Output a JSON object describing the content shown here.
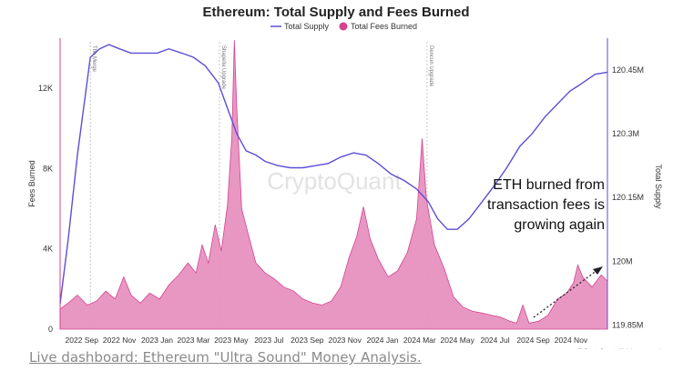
{
  "caption": "Live dashboard: Ethereum \"Ultra Sound\" Money Analysis.",
  "chart_data": {
    "type": "area",
    "title": "Ethereum: Total Supply and Fees Burned",
    "watermark": "CryptoQuant",
    "credit": "© CryptoQuant. All rights reserved",
    "legend": {
      "placement": "top-center",
      "items": [
        {
          "label": "Total Supply",
          "marker": "line"
        },
        {
          "label": "Total Fees Burned",
          "marker": "dot"
        }
      ]
    },
    "ylabel_left": "Fees Burned",
    "ylabel_right": "Total Supply",
    "ylim_left": [
      0,
      14500
    ],
    "ylim_right": [
      119.84,
      120.525
    ],
    "xlim": [
      "2022-07-28",
      "2024-12-30"
    ],
    "y_ticks_left": [
      {
        "value": 0,
        "label": "0"
      },
      {
        "value": 4000,
        "label": "4K"
      },
      {
        "value": 8000,
        "label": "8K"
      },
      {
        "value": 12000,
        "label": "12K"
      }
    ],
    "y_ticks_right": [
      {
        "value": 119.85,
        "label": "119.85M"
      },
      {
        "value": 120.0,
        "label": "120M"
      },
      {
        "value": 120.15,
        "label": "120.15M"
      },
      {
        "value": 120.3,
        "label": "120.3M"
      },
      {
        "value": 120.45,
        "label": "120.45M"
      }
    ],
    "x_ticks": [
      {
        "date": "2022-09-01",
        "label": "2022 Sep"
      },
      {
        "date": "2022-11-01",
        "label": "2022 Nov"
      },
      {
        "date": "2023-01-01",
        "label": "2023 Jan"
      },
      {
        "date": "2023-03-01",
        "label": "2023 Mar"
      },
      {
        "date": "2023-05-01",
        "label": "2023 May"
      },
      {
        "date": "2023-07-01",
        "label": "2023 Jul"
      },
      {
        "date": "2023-09-01",
        "label": "2023 Sep"
      },
      {
        "date": "2023-11-01",
        "label": "2023 Nov"
      },
      {
        "date": "2024-01-01",
        "label": "2024 Jan"
      },
      {
        "date": "2024-03-01",
        "label": "2024 Mar"
      },
      {
        "date": "2024-05-01",
        "label": "2024 May"
      },
      {
        "date": "2024-07-01",
        "label": "2024 Jul"
      },
      {
        "date": "2024-09-01",
        "label": "2024 Sep"
      },
      {
        "date": "2024-11-01",
        "label": "2024 Nov"
      }
    ],
    "events": [
      {
        "date": "2022-09-15",
        "label": "The Merge"
      },
      {
        "date": "2023-04-12",
        "label": "Shapella Upgrade"
      },
      {
        "date": "2024-03-13",
        "label": "Dencun Upgrade"
      }
    ],
    "annotation": {
      "lines": [
        "ETH burned from",
        "transaction fees is",
        "growing again"
      ]
    },
    "colors": {
      "supply": "#5b4fd6",
      "fees_fill": "#e58cbb",
      "fees_stroke": "#d4438f",
      "event_line": "#c8c8c8",
      "text": "#333333"
    },
    "series": [
      {
        "name": "Total Supply",
        "axis": "right",
        "points": [
          [
            "2022-07-28",
            119.9
          ],
          [
            "2022-08-10",
            120.05
          ],
          [
            "2022-08-25",
            120.25
          ],
          [
            "2022-09-15",
            120.48
          ],
          [
            "2022-09-30",
            120.5
          ],
          [
            "2022-10-15",
            120.51
          ],
          [
            "2022-11-01",
            120.5
          ],
          [
            "2022-11-20",
            120.49
          ],
          [
            "2022-12-10",
            120.49
          ],
          [
            "2023-01-01",
            120.49
          ],
          [
            "2023-01-20",
            120.5
          ],
          [
            "2023-02-10",
            120.49
          ],
          [
            "2023-03-01",
            120.48
          ],
          [
            "2023-03-20",
            120.46
          ],
          [
            "2023-04-10",
            120.42
          ],
          [
            "2023-04-25",
            120.36
          ],
          [
            "2023-05-10",
            120.3
          ],
          [
            "2023-05-25",
            120.26
          ],
          [
            "2023-06-10",
            120.25
          ],
          [
            "2023-06-25",
            120.235
          ],
          [
            "2023-07-15",
            120.225
          ],
          [
            "2023-08-05",
            120.22
          ],
          [
            "2023-08-25",
            120.22
          ],
          [
            "2023-09-15",
            120.225
          ],
          [
            "2023-10-05",
            120.23
          ],
          [
            "2023-10-25",
            120.245
          ],
          [
            "2023-11-15",
            120.255
          ],
          [
            "2023-12-05",
            120.25
          ],
          [
            "2023-12-25",
            120.23
          ],
          [
            "2024-01-15",
            120.205
          ],
          [
            "2024-02-05",
            120.19
          ],
          [
            "2024-02-25",
            120.17
          ],
          [
            "2024-03-15",
            120.14
          ],
          [
            "2024-03-30",
            120.1
          ],
          [
            "2024-04-15",
            120.075
          ],
          [
            "2024-05-01",
            120.075
          ],
          [
            "2024-05-20",
            120.1
          ],
          [
            "2024-06-10",
            120.14
          ],
          [
            "2024-07-01",
            120.18
          ],
          [
            "2024-07-20",
            120.22
          ],
          [
            "2024-08-10",
            120.27
          ],
          [
            "2024-08-30",
            120.3
          ],
          [
            "2024-09-20",
            120.34
          ],
          [
            "2024-10-10",
            120.37
          ],
          [
            "2024-10-30",
            120.4
          ],
          [
            "2024-11-20",
            120.42
          ],
          [
            "2024-12-10",
            120.44
          ],
          [
            "2024-12-30",
            120.445
          ]
        ]
      },
      {
        "name": "Total Fees Burned",
        "axis": "left",
        "points": [
          [
            "2022-07-28",
            1000
          ],
          [
            "2022-08-10",
            1300
          ],
          [
            "2022-08-25",
            1700
          ],
          [
            "2022-09-10",
            1200
          ],
          [
            "2022-09-25",
            1400
          ],
          [
            "2022-10-10",
            1900
          ],
          [
            "2022-10-25",
            1500
          ],
          [
            "2022-11-08",
            2600
          ],
          [
            "2022-11-20",
            1700
          ],
          [
            "2022-12-05",
            1300
          ],
          [
            "2022-12-20",
            1800
          ],
          [
            "2023-01-05",
            1500
          ],
          [
            "2023-01-20",
            2200
          ],
          [
            "2023-02-05",
            2700
          ],
          [
            "2023-02-20",
            3300
          ],
          [
            "2023-03-05",
            2800
          ],
          [
            "2023-03-15",
            4200
          ],
          [
            "2023-03-25",
            3300
          ],
          [
            "2023-04-05",
            5200
          ],
          [
            "2023-04-15",
            3900
          ],
          [
            "2023-04-25",
            6200
          ],
          [
            "2023-05-02",
            9600
          ],
          [
            "2023-05-06",
            14400
          ],
          [
            "2023-05-10",
            11000
          ],
          [
            "2023-05-18",
            6000
          ],
          [
            "2023-05-28",
            4800
          ],
          [
            "2023-06-10",
            3300
          ],
          [
            "2023-06-25",
            2800
          ],
          [
            "2023-07-10",
            2500
          ],
          [
            "2023-07-25",
            2100
          ],
          [
            "2023-08-10",
            1900
          ],
          [
            "2023-08-25",
            1500
          ],
          [
            "2023-09-10",
            1300
          ],
          [
            "2023-09-25",
            1200
          ],
          [
            "2023-10-10",
            1400
          ],
          [
            "2023-10-25",
            2100
          ],
          [
            "2023-11-08",
            3600
          ],
          [
            "2023-11-20",
            4600
          ],
          [
            "2023-12-01",
            6100
          ],
          [
            "2023-12-12",
            4500
          ],
          [
            "2023-12-25",
            3500
          ],
          [
            "2024-01-10",
            2600
          ],
          [
            "2024-01-25",
            2900
          ],
          [
            "2024-02-10",
            3800
          ],
          [
            "2024-02-25",
            5500
          ],
          [
            "2024-03-05",
            9500
          ],
          [
            "2024-03-12",
            6500
          ],
          [
            "2024-03-25",
            4200
          ],
          [
            "2024-04-10",
            3000
          ],
          [
            "2024-04-25",
            1600
          ],
          [
            "2024-05-10",
            1100
          ],
          [
            "2024-05-25",
            900
          ],
          [
            "2024-06-10",
            800
          ],
          [
            "2024-06-25",
            700
          ],
          [
            "2024-07-10",
            600
          ],
          [
            "2024-07-25",
            400
          ],
          [
            "2024-08-05",
            300
          ],
          [
            "2024-08-15",
            1200
          ],
          [
            "2024-08-25",
            300
          ],
          [
            "2024-09-10",
            400
          ],
          [
            "2024-09-25",
            700
          ],
          [
            "2024-10-10",
            1500
          ],
          [
            "2024-10-25",
            1800
          ],
          [
            "2024-11-05",
            2300
          ],
          [
            "2024-11-12",
            3200
          ],
          [
            "2024-11-20",
            2600
          ],
          [
            "2024-12-05",
            2100
          ],
          [
            "2024-12-20",
            2700
          ],
          [
            "2024-12-30",
            2400
          ]
        ]
      }
    ]
  }
}
